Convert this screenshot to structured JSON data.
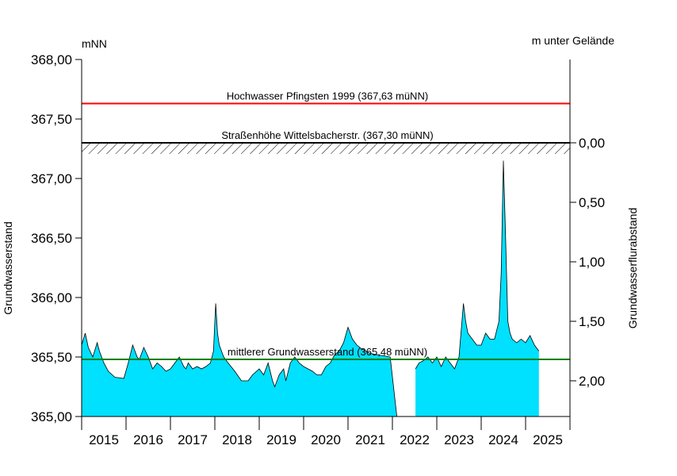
{
  "chart_data": {
    "type": "area",
    "left_unit": "mNN",
    "right_unit": "m unter Gelände",
    "ylabel": "Grundwasserstand",
    "ylabel_right": "Grundwasserflurabstand",
    "ylim": [
      365.0,
      368.0
    ],
    "yticks": [
      "365,00",
      "365,50",
      "366,00",
      "366,50",
      "367,00",
      "367,50",
      "368,00"
    ],
    "yticks_right": [
      "0,00",
      "0,50",
      "1,00",
      "1,50",
      "2,00"
    ],
    "right_axis_reference_level": 367.3,
    "xlim": [
      2015.0,
      2026.0
    ],
    "xticks": [
      "2015",
      "2016",
      "2017",
      "2018",
      "2019",
      "2020",
      "2021",
      "2022",
      "2023",
      "2024",
      "2025"
    ],
    "grid": false,
    "fill_color": "#00E0FF",
    "reference_lines": [
      {
        "label": "Hochwasser Pfingsten 1999 (367,63 müNN)",
        "value": 367.63,
        "color": "#FF0000"
      },
      {
        "label": "Straßenhöhe Wittelsbacherstr. (367,30 müNN)",
        "value": 367.3,
        "color": "#000000",
        "hatched": true
      },
      {
        "label": "mittlerer Grundwasserstand (365,48 müNN)",
        "value": 365.48,
        "color": "#008000"
      }
    ],
    "series": [
      {
        "x": [
          2015.0,
          2015.08,
          2015.15,
          2015.25,
          2015.35,
          2015.4,
          2015.5,
          2015.6,
          2015.75,
          2015.95,
          2016.05,
          2016.15,
          2016.2,
          2016.25,
          2016.3,
          2016.4,
          2016.5,
          2016.55,
          2016.6,
          2016.7,
          2016.8,
          2016.9,
          2017.0,
          2017.1,
          2017.2,
          2017.3,
          2017.35,
          2017.4,
          2017.5,
          2017.6,
          2017.7,
          2017.8,
          2017.9,
          2017.97,
          2018.02,
          2018.06,
          2018.1,
          2018.2,
          2018.3,
          2018.45,
          2018.6,
          2018.75,
          2018.85,
          2019.0,
          2019.1,
          2019.2,
          2019.3,
          2019.35,
          2019.45,
          2019.55,
          2019.6,
          2019.7,
          2019.8,
          2019.9,
          2020.0,
          2020.1,
          2020.2,
          2020.3,
          2020.4,
          2020.5,
          2020.6,
          2020.7,
          2020.8,
          2020.9,
          2021.0,
          2021.1,
          2021.2,
          2021.3,
          2021.4,
          2021.5,
          2021.65,
          2021.8,
          2021.95,
          2022.1,
          2022.2,
          2022.22,
          2022.5,
          2022.52,
          2022.6,
          2022.7,
          2022.8,
          2022.9,
          2023.0,
          2023.1,
          2023.2,
          2023.3,
          2023.4,
          2023.5,
          2023.6,
          2023.65,
          2023.7,
          2023.8,
          2023.9,
          2024.0,
          2024.1,
          2024.2,
          2024.3,
          2024.4,
          2024.45,
          2024.5,
          2024.55,
          2024.6,
          2024.65,
          2024.7,
          2024.8,
          2024.9,
          2025.0,
          2025.1,
          2025.2,
          2025.3
        ],
        "y": [
          365.6,
          365.7,
          365.58,
          365.5,
          365.62,
          365.55,
          365.45,
          365.38,
          365.33,
          365.32,
          365.45,
          365.6,
          365.55,
          365.5,
          365.48,
          365.58,
          365.5,
          365.45,
          365.4,
          365.45,
          365.42,
          365.38,
          365.4,
          365.45,
          365.5,
          365.42,
          365.4,
          365.45,
          365.4,
          365.42,
          365.4,
          365.42,
          365.45,
          365.55,
          365.95,
          365.7,
          365.6,
          365.5,
          365.45,
          365.38,
          365.3,
          365.3,
          365.35,
          365.4,
          365.35,
          365.45,
          365.3,
          365.25,
          365.35,
          365.4,
          365.3,
          365.45,
          365.5,
          365.45,
          365.42,
          365.4,
          365.38,
          365.35,
          365.35,
          365.42,
          365.45,
          365.52,
          365.55,
          365.62,
          365.75,
          365.65,
          365.6,
          365.57,
          365.55,
          365.53,
          365.52,
          365.51,
          365.5,
          365.0,
          365.0,
          null,
          null,
          365.4,
          365.45,
          365.47,
          365.5,
          365.45,
          365.5,
          365.42,
          365.5,
          365.45,
          365.4,
          365.5,
          365.95,
          365.8,
          365.7,
          365.65,
          365.6,
          365.6,
          365.7,
          365.65,
          365.65,
          365.8,
          366.2,
          367.15,
          366.5,
          365.8,
          365.7,
          365.65,
          365.62,
          365.65,
          365.62,
          365.68,
          365.6,
          365.55
        ]
      }
    ]
  }
}
